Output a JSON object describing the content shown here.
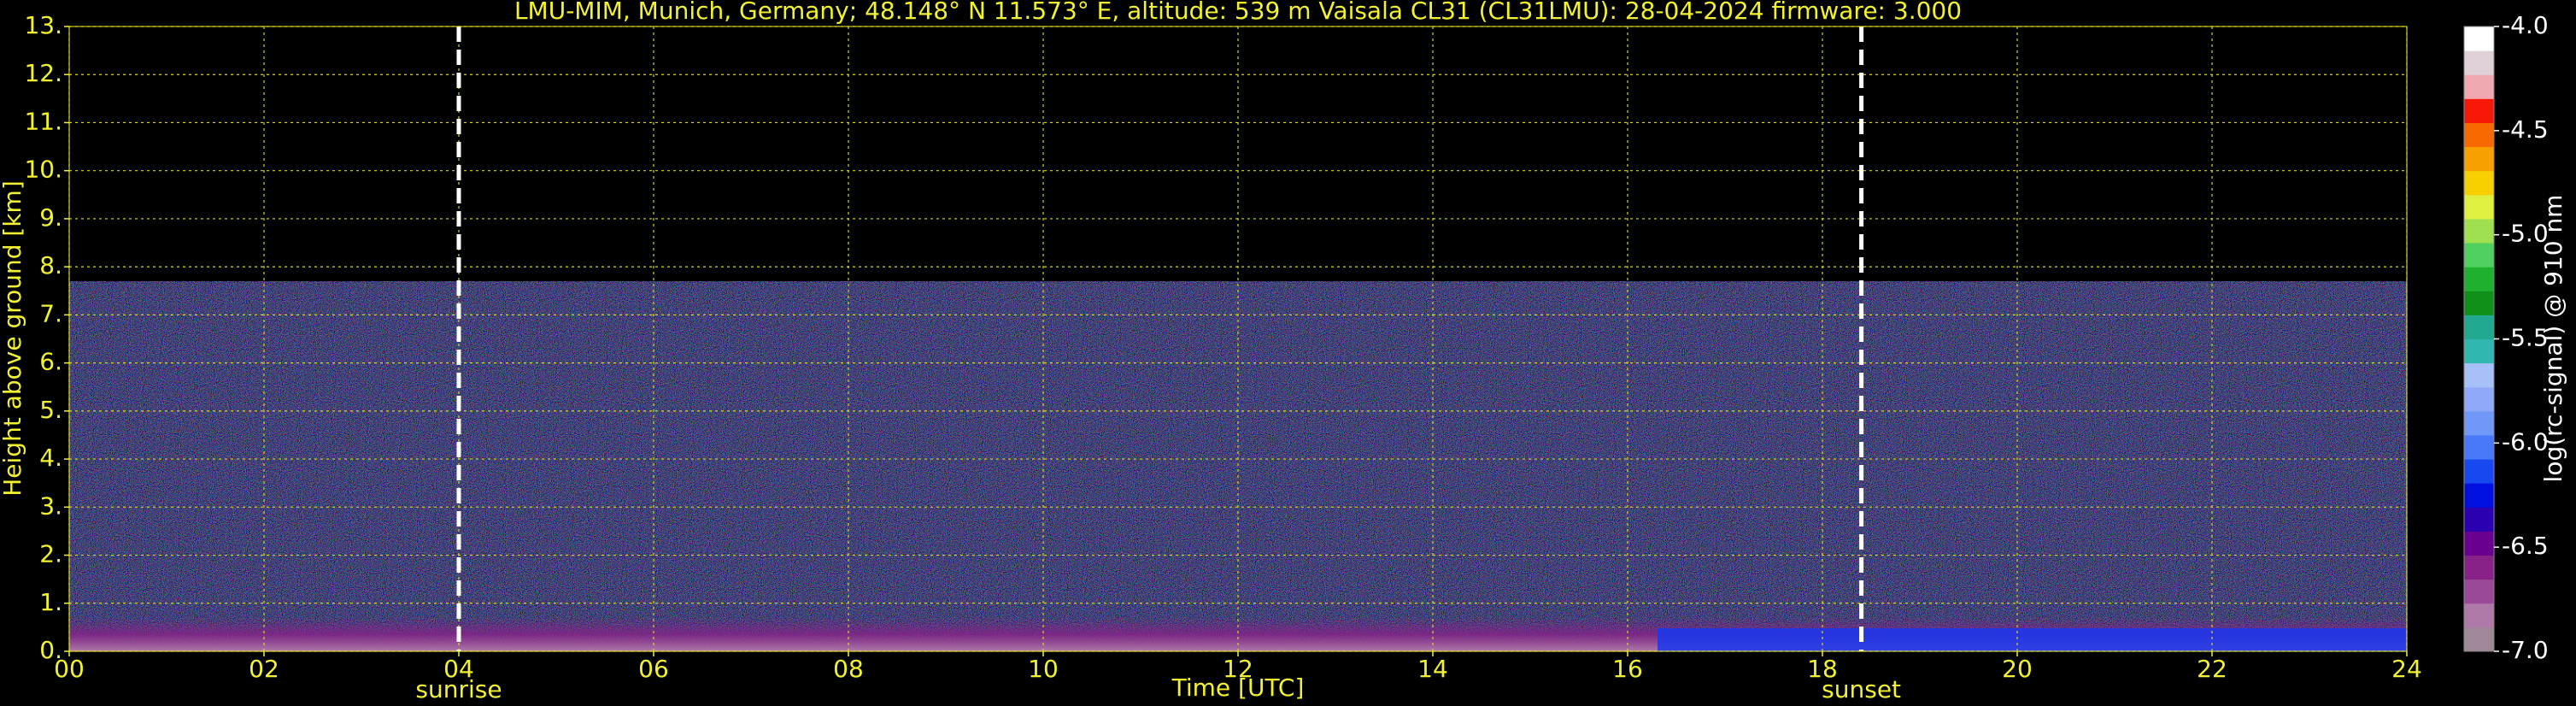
{
  "chart_data": {
    "type": "heatmap",
    "title": "LMU-MIM, Munich, Germany; 48.148° N 11.573° E, altitude: 539 m    Vaisala CL31 (CL31LMU): 28-04-2024    firmware: 3.000",
    "x_label": "Time [UTC]",
    "y_label": "Height above ground [km]",
    "xlim": [
      0,
      24
    ],
    "xticks": [
      {
        "value": 0,
        "label": "00"
      },
      {
        "value": 2,
        "label": "02"
      },
      {
        "value": 4,
        "label": "04"
      },
      {
        "value": 6,
        "label": "06"
      },
      {
        "value": 8,
        "label": "08"
      },
      10,
      12,
      14,
      16,
      18,
      20,
      22,
      24
    ],
    "ylim": [
      0,
      13
    ],
    "yticks": [
      {
        "value": 0,
        "label": "0."
      },
      {
        "value": 1,
        "label": "1."
      },
      {
        "value": 2,
        "label": "2."
      },
      {
        "value": 3,
        "label": "3."
      },
      {
        "value": 4,
        "label": "4."
      },
      {
        "value": 5,
        "label": "5."
      },
      {
        "value": 6,
        "label": "6."
      },
      {
        "value": 7,
        "label": "7."
      },
      {
        "value": 8,
        "label": "8."
      },
      {
        "value": 9,
        "label": "9."
      },
      {
        "value": 10,
        "label": "10."
      },
      {
        "value": 11,
        "label": "11."
      },
      {
        "value": 12,
        "label": "12."
      },
      {
        "value": 13,
        "label": "13."
      }
    ],
    "grid": true,
    "annotations": [
      {
        "text": "sunrise",
        "x": 4
      },
      {
        "text": "sunset",
        "x": 18.4
      }
    ],
    "colorbar": {
      "label": "log(rc-signal) @ 910 nm",
      "lim": [
        -7,
        -4
      ],
      "ticks": [
        {
          "value": -4,
          "label": "-4.0"
        },
        -4.5,
        {
          "value": -5,
          "label": "-5.0"
        },
        -5.5,
        {
          "value": -6,
          "label": "-6.0"
        },
        -6.5,
        {
          "value": -7,
          "label": "-7.0"
        }
      ],
      "colors": [
        "#a08898",
        "#b07aa8",
        "#9a4898",
        "#882288",
        "#6a0090",
        "#2a00b0",
        "#0010e0",
        "#1848f0",
        "#4878f8",
        "#7098f8",
        "#90a8f8",
        "#a8c0f8",
        "#30b8b0",
        "#20a890",
        "#109018",
        "#20b030",
        "#50d060",
        "#a0e050",
        "#e0f040",
        "#f8d000",
        "#f8a000",
        "#f86800",
        "#f81808",
        "#f0a8b0",
        "#e0d0d8",
        "#ffffff"
      ]
    }
  }
}
